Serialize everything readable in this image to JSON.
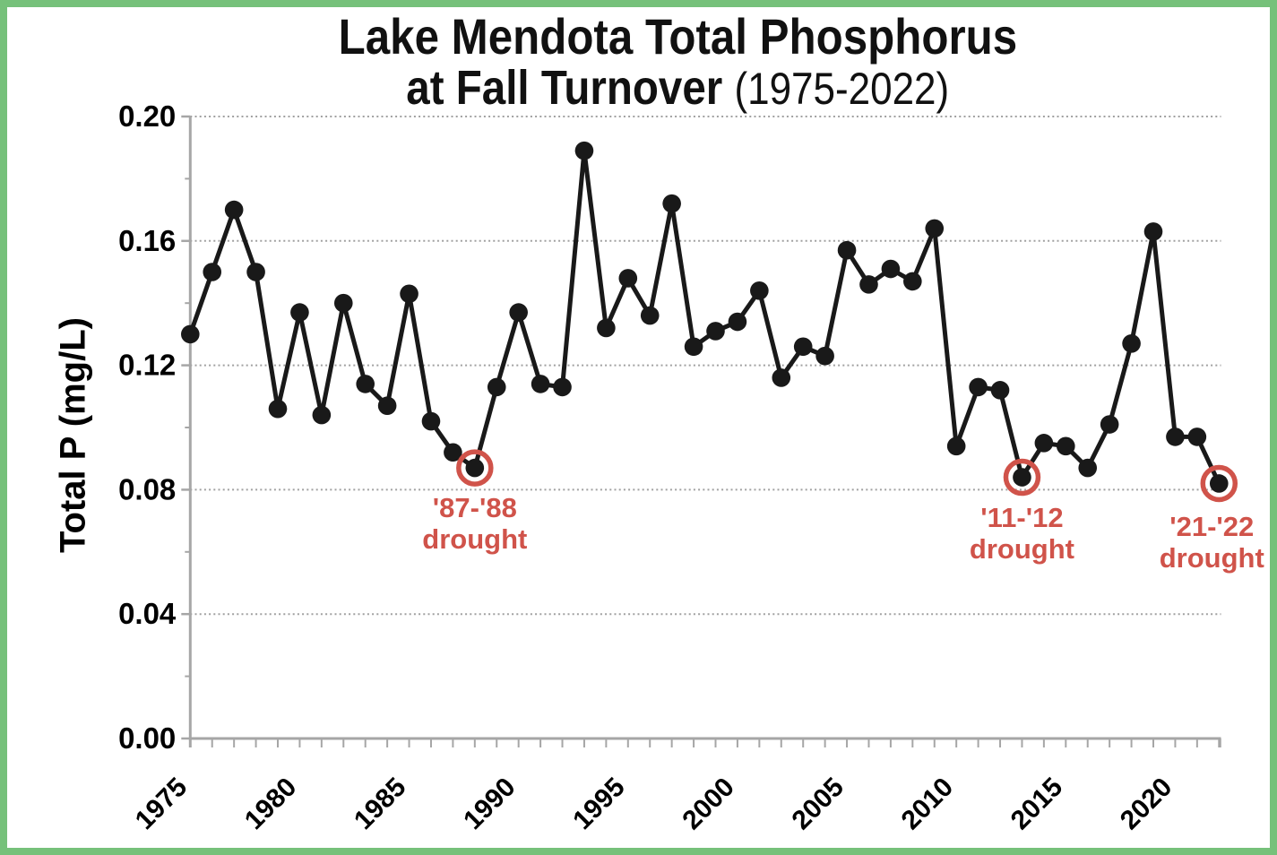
{
  "title": {
    "line1": "Lake Mendota Total Phosphorus",
    "line2_main": "at Fall Turnover ",
    "line2_range": "(1975-2022)"
  },
  "axes": {
    "y_title": "Total P (mg/L)",
    "y_tick_labels": [
      "0.00",
      "0.04",
      "0.08",
      "0.12",
      "0.16",
      "0.20"
    ],
    "x_tick_labels": [
      "1975",
      "1980",
      "1985",
      "1990",
      "1995",
      "2000",
      "2005",
      "2010",
      "2015",
      "2020"
    ]
  },
  "colors": {
    "line": "#191919",
    "marker": "#191919",
    "axis": "#a6a6a6",
    "grid": "#a0a0a0",
    "annotation_red": "#d0534a",
    "page_border_green": "#76c17a",
    "text": "#000000"
  },
  "chart_data": {
    "type": "line",
    "title": "Lake Mendota Total Phosphorus at Fall Turnover (1975-2022)",
    "xlabel": "",
    "ylabel": "Total P (mg/L)",
    "ylim": [
      0.0,
      0.2
    ],
    "y_tick_step": 0.04,
    "y_minor_tick_step": 0.02,
    "x_tick_label_years": [
      1975,
      1980,
      1985,
      1990,
      1995,
      2000,
      2005,
      2010,
      2015,
      2020
    ],
    "grid": "horizontal dotted gridlines at major y ticks",
    "legend": null,
    "marker": "filled black circle",
    "x": [
      1975,
      1976,
      1977,
      1978,
      1979,
      1980,
      1981,
      1982,
      1983,
      1984,
      1985,
      1986,
      1987,
      1988,
      1989,
      1990,
      1991,
      1992,
      1993,
      1994,
      1995,
      1996,
      1997,
      1998,
      1999,
      2000,
      2001,
      2002,
      2003,
      2004,
      2005,
      2006,
      2007,
      2008,
      2009,
      2010,
      2011,
      2012,
      2013,
      2014,
      2015,
      2016,
      2017,
      2018,
      2019,
      2020,
      2021,
      2022
    ],
    "values": [
      0.13,
      0.15,
      0.17,
      0.15,
      0.106,
      0.137,
      0.104,
      0.14,
      0.114,
      0.107,
      0.143,
      0.102,
      0.092,
      0.087,
      0.113,
      0.137,
      0.114,
      0.113,
      0.189,
      0.132,
      0.148,
      0.136,
      0.172,
      0.126,
      0.131,
      0.134,
      0.144,
      0.116,
      0.126,
      0.123,
      0.157,
      0.146,
      0.151,
      0.147,
      0.164,
      0.094,
      0.113,
      0.112,
      0.084,
      0.095,
      0.094,
      0.087,
      0.101,
      0.127,
      0.163,
      0.097,
      0.097,
      0.082
    ],
    "annotations": [
      {
        "label": [
          "'87-'88",
          "drought"
        ],
        "circled_year": 1988,
        "dx": 0,
        "dy": 0
      },
      {
        "label": [
          "'11-'12",
          "drought"
        ],
        "circled_year": 2013,
        "dx": 0,
        "dy": 0
      },
      {
        "label": [
          "'21-'22",
          "drought"
        ],
        "circled_year": 2022,
        "dx": -8,
        "dy": 4
      }
    ]
  }
}
